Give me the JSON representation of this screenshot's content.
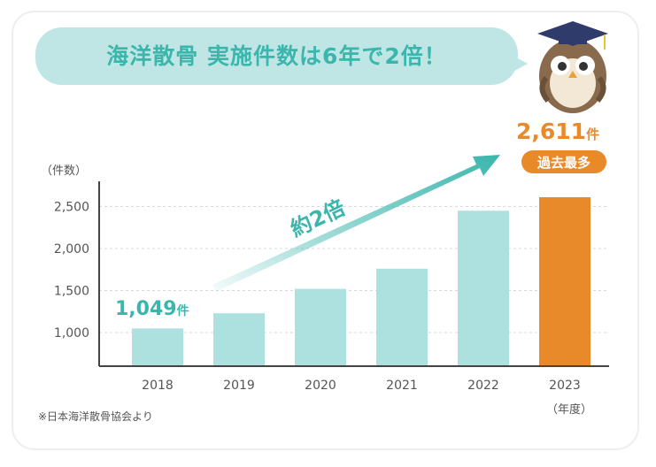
{
  "headline": "海洋散骨 実施件数は6年で2倍！",
  "footnote": "※日本海洋散骨協会より",
  "colors": {
    "bar": "#ade1df",
    "highlight_bar": "#e8892a",
    "accent_teal": "#3bb6ad",
    "accent_orange": "#e8892a",
    "bubble": "#bfe6e4"
  },
  "mascot_icon": "owl-graduate-icon",
  "chart_data": {
    "type": "bar",
    "categories": [
      "2018",
      "2019",
      "2020",
      "2021",
      "2022",
      "2023"
    ],
    "values": [
      1049,
      1230,
      1520,
      1760,
      2450,
      2611
    ],
    "highlight_index": 5,
    "title": "",
    "xlabel": "（年度）",
    "ylabel": "（件数）",
    "ylim": [
      600,
      2800
    ],
    "yticks": [
      1000,
      1500,
      2000,
      2500
    ],
    "ytick_labels": [
      "1,000",
      "1,500",
      "2,000",
      "2,500"
    ],
    "grid": true,
    "annotations": {
      "start": {
        "value": "1,049",
        "suffix": "件"
      },
      "end": {
        "value": "2,611",
        "suffix": "件"
      },
      "badge": "過去最多",
      "growth": "約2倍"
    }
  }
}
